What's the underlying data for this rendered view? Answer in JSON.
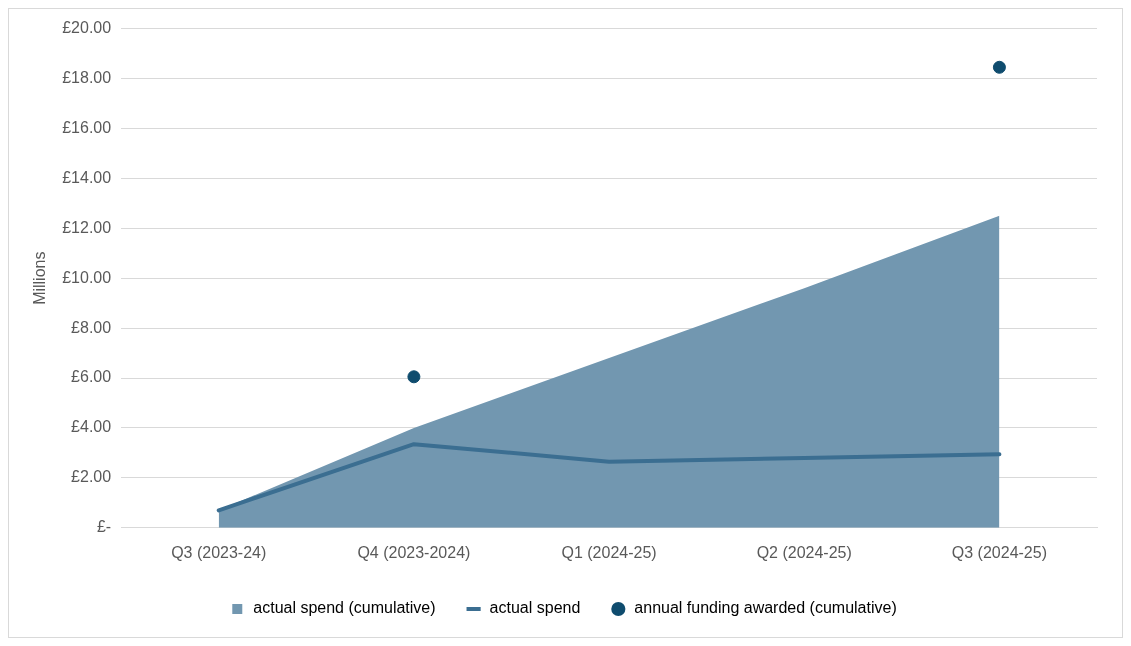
{
  "chart_data": {
    "type": "area",
    "ylabel": "Millions",
    "categories": [
      "Q3 (2023-24)",
      "Q4 (2023-2024)",
      "Q1 (2024-25)",
      "Q2 (2024-25)",
      "Q3 (2024-25)"
    ],
    "series": [
      {
        "name": "actual spend (cumulative)",
        "color": "#7297b0",
        "values": [
          0.7,
          4.0,
          6.8,
          9.6,
          12.5
        ]
      },
      {
        "name": "actual spend",
        "type": "line",
        "color": "#3b6e91",
        "values": [
          0.7,
          3.35,
          2.65,
          2.8,
          2.95
        ]
      },
      {
        "name": "annual funding awarded (cumulative)",
        "type": "scatter",
        "marker": "circle",
        "color": "#0f4c6e",
        "values": [
          null,
          6.05,
          null,
          null,
          18.45
        ]
      }
    ],
    "ylim": [
      0,
      20
    ],
    "yticks": [
      {
        "value": 0,
        "label": "£-"
      },
      {
        "value": 2,
        "label": "£2.00"
      },
      {
        "value": 4,
        "label": "£4.00"
      },
      {
        "value": 6,
        "label": "£6.00"
      },
      {
        "value": 8,
        "label": "£8.00"
      },
      {
        "value": 10,
        "label": "£10.00"
      },
      {
        "value": 12,
        "label": "£12.00"
      },
      {
        "value": 14,
        "label": "£14.00"
      },
      {
        "value": 16,
        "label": "£16.00"
      },
      {
        "value": 18,
        "label": "£18.00"
      },
      {
        "value": 20,
        "label": "£20.00"
      }
    ],
    "grid": "y",
    "legend": "bottom"
  }
}
